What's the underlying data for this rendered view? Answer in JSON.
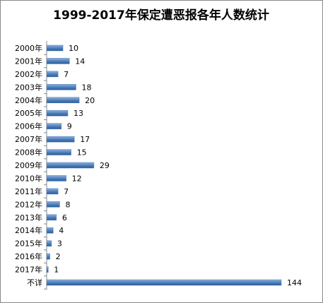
{
  "chart_data": {
    "type": "bar",
    "orientation": "horizontal",
    "title": "1999-2017年保定遭恶报各年人数统计",
    "categories": [
      "2000年",
      "2001年",
      "2002年",
      "2003年",
      "2004年",
      "2005年",
      "2006年",
      "2007年",
      "2008年",
      "2009年",
      "2010年",
      "2011年",
      "2012年",
      "2013年",
      "2014年",
      "2015年",
      "2016年",
      "2017年",
      "不详"
    ],
    "values": [
      10,
      14,
      7,
      18,
      20,
      13,
      9,
      17,
      15,
      29,
      12,
      7,
      8,
      6,
      4,
      3,
      2,
      1,
      144
    ],
    "color": "#4f81bd"
  }
}
